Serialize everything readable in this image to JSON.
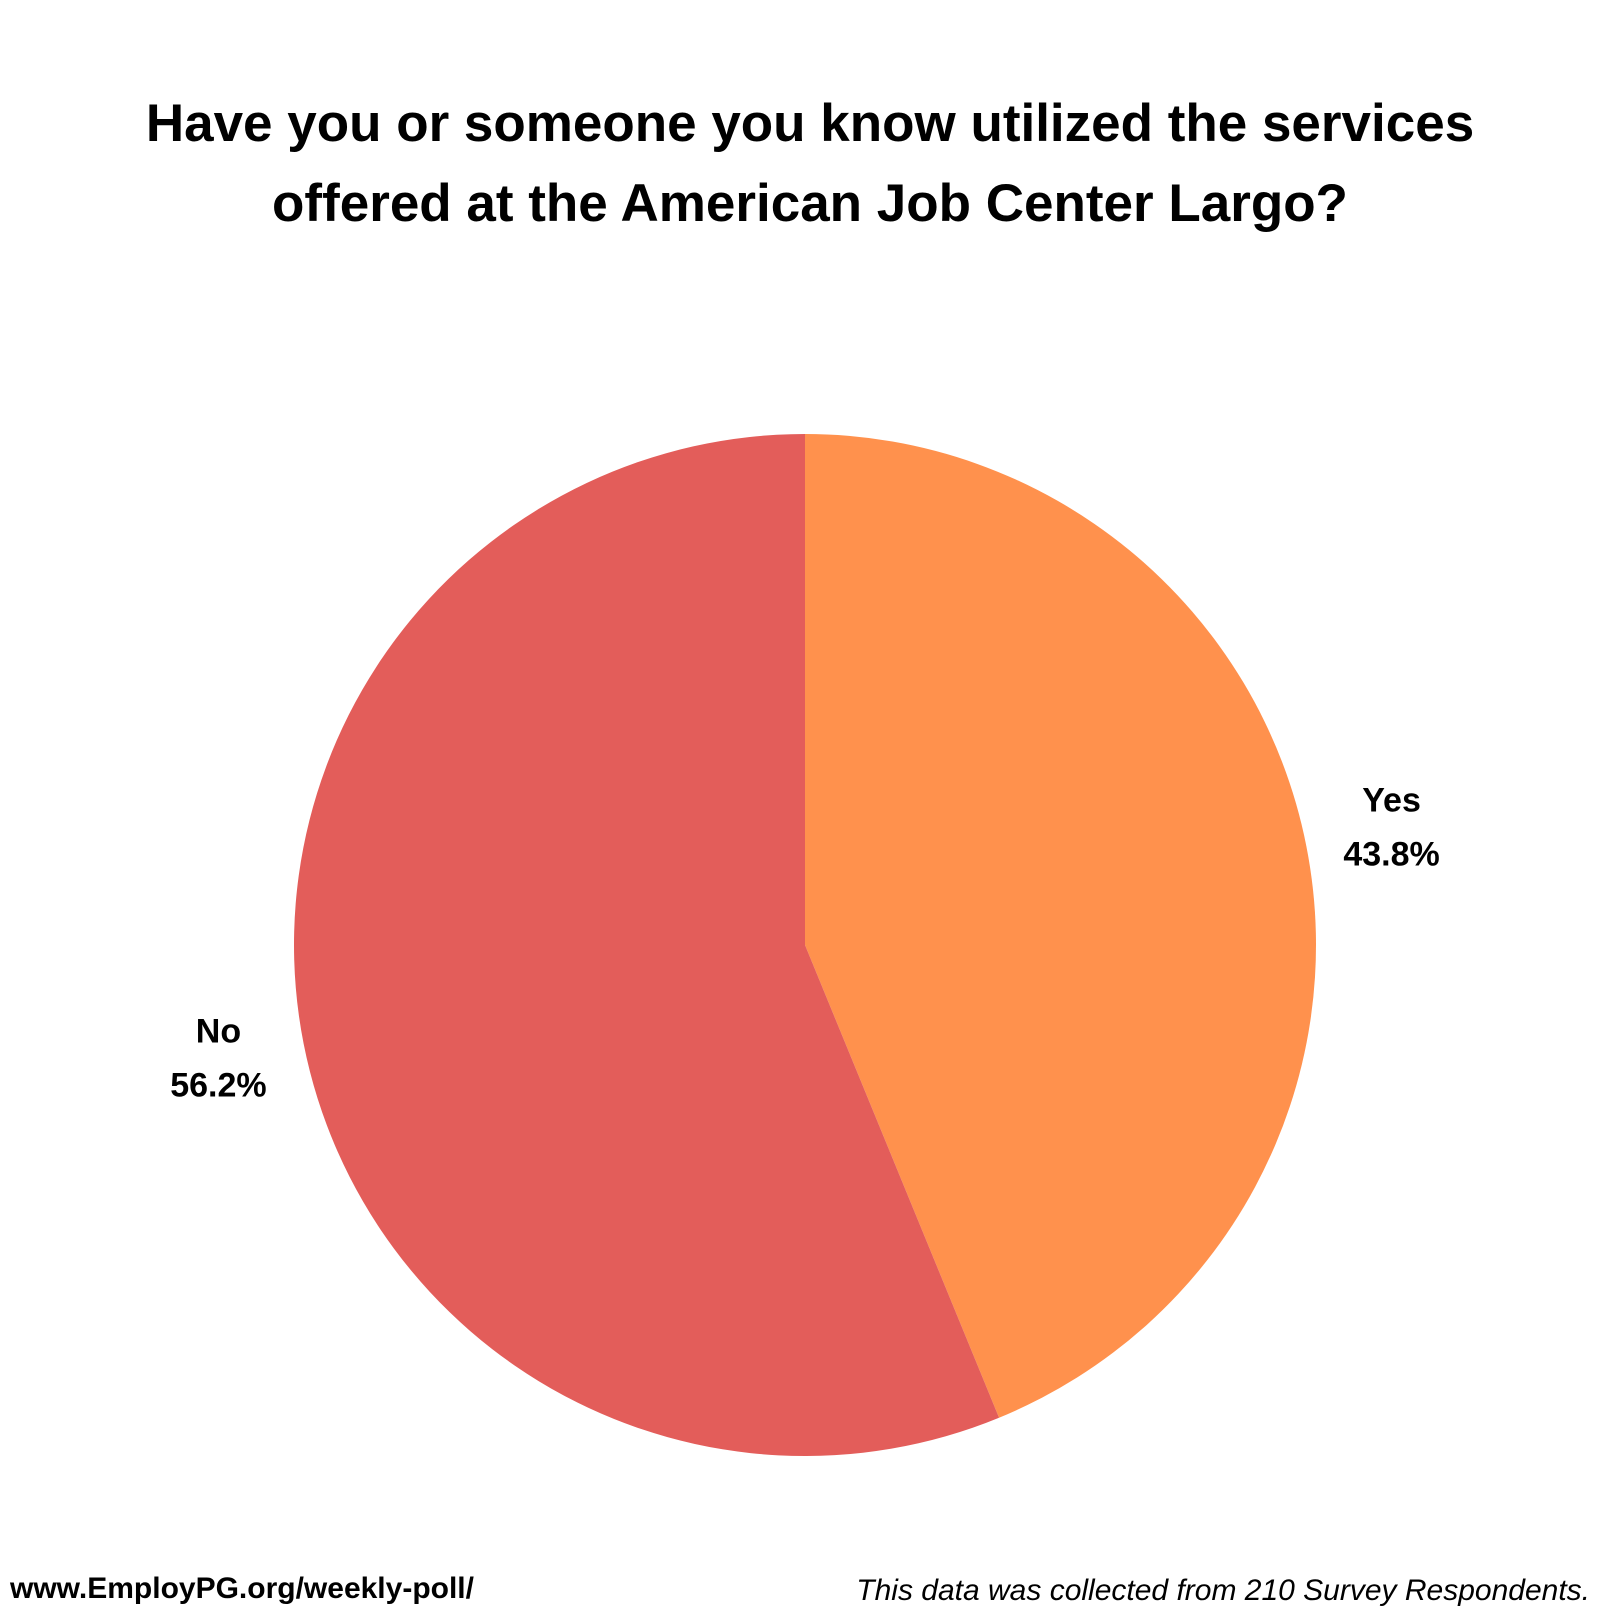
{
  "chart_data": {
    "type": "pie",
    "title": "Have you or someone you know utilized the services offered at the American Job Center Largo?",
    "categories": [
      "Yes",
      "No"
    ],
    "values": [
      43.8,
      56.2
    ],
    "value_labels": [
      "43.8%",
      "56.2%"
    ],
    "colors": [
      "#FF914D",
      "#E35D5A"
    ],
    "source": "www.EmployPG.org/weekly-poll/",
    "note": "This data was collected from 210 Survey Respondents."
  }
}
